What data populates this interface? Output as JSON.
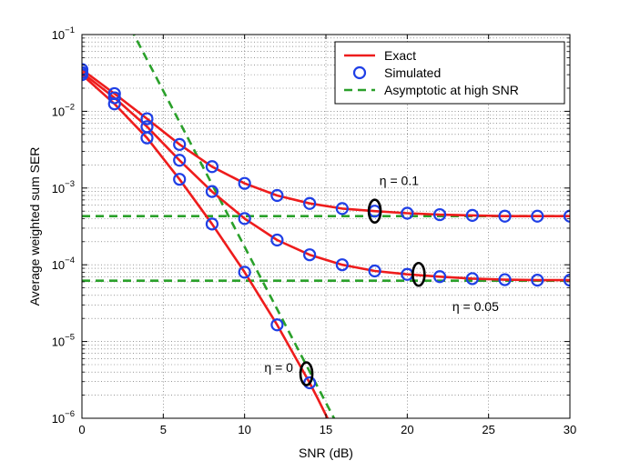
{
  "chart_data": {
    "type": "line",
    "title": "",
    "xlabel": "SNR (dB)",
    "ylabel": "Average weighted sum SER",
    "xlim": [
      0,
      30
    ],
    "ylim": [
      1e-06,
      0.1
    ],
    "yscale": "log",
    "grid": true,
    "x_ticks": [
      0,
      5,
      10,
      15,
      20,
      25,
      30
    ],
    "x_tick_labels": [
      "0",
      "5",
      "10",
      "15",
      "20",
      "25",
      "30"
    ],
    "y_ticks": [
      1e-06,
      1e-05,
      0.0001,
      0.001,
      0.01,
      0.1
    ],
    "y_tick_labels": [
      {
        "base": "10",
        "exp": "−6"
      },
      {
        "base": "10",
        "exp": "−5"
      },
      {
        "base": "10",
        "exp": "−4"
      },
      {
        "base": "10",
        "exp": "−3"
      },
      {
        "base": "10",
        "exp": "−2"
      },
      {
        "base": "10",
        "exp": "−1"
      }
    ],
    "legend": {
      "position": "top-right",
      "entries": [
        {
          "label": "Exact",
          "style": "line",
          "color": "#ee1c1c"
        },
        {
          "label": "Simulated",
          "style": "marker",
          "color": "#1f3fe6"
        },
        {
          "label": "Asymptotic at high SNR",
          "style": "dashed",
          "color": "#2aa02a"
        }
      ]
    },
    "series": [
      {
        "name": "Exact η = 0.1",
        "color": "#ee1c1c",
        "x": [
          0,
          2,
          4,
          6,
          8,
          10,
          12,
          14,
          16,
          18,
          20,
          22,
          24,
          26,
          28,
          30
        ],
        "y": [
          0.035,
          0.017,
          0.008,
          0.0037,
          0.0019,
          0.00115,
          0.0008,
          0.00063,
          0.00054,
          0.0005,
          0.00047,
          0.00045,
          0.00044,
          0.00043,
          0.00043,
          0.00043
        ]
      },
      {
        "name": "Exact η = 0.05",
        "color": "#ee1c1c",
        "x": [
          0,
          2,
          4,
          6,
          8,
          10,
          12,
          14,
          16,
          18,
          20,
          22,
          24,
          26,
          28,
          30
        ],
        "y": [
          0.032,
          0.015,
          0.0063,
          0.0023,
          0.0009,
          0.0004,
          0.00021,
          0.000135,
          0.0001,
          8.3e-05,
          7.5e-05,
          7e-05,
          6.6e-05,
          6.4e-05,
          6.3e-05,
          6.3e-05
        ]
      },
      {
        "name": "Exact η = 0",
        "color": "#ee1c1c",
        "x": [
          0,
          2,
          4,
          6,
          8,
          10,
          12,
          14,
          14.5,
          15,
          15.5
        ],
        "y": [
          0.03,
          0.0125,
          0.0045,
          0.0013,
          0.00034,
          8e-05,
          1.65e-05,
          2.9e-06,
          1.8e-06,
          1.1e-06,
          6.8e-07
        ]
      },
      {
        "name": "Simulated η = 0.1",
        "color": "#1f3fe6",
        "marker": "circle",
        "x": [
          0,
          2,
          4,
          6,
          8,
          10,
          12,
          14,
          16,
          18,
          20,
          22,
          24,
          26,
          28,
          30
        ],
        "y": [
          0.035,
          0.017,
          0.008,
          0.0037,
          0.0019,
          0.00115,
          0.0008,
          0.00063,
          0.00054,
          0.0005,
          0.00047,
          0.00045,
          0.00044,
          0.00043,
          0.00043,
          0.00043
        ]
      },
      {
        "name": "Simulated η = 0.05",
        "color": "#1f3fe6",
        "marker": "circle",
        "x": [
          0,
          2,
          4,
          6,
          8,
          10,
          12,
          14,
          16,
          18,
          20,
          22,
          24,
          26,
          28,
          30
        ],
        "y": [
          0.032,
          0.015,
          0.0063,
          0.0023,
          0.0009,
          0.0004,
          0.00021,
          0.000135,
          0.0001,
          8.3e-05,
          7.5e-05,
          7e-05,
          6.6e-05,
          6.4e-05,
          6.3e-05,
          6.3e-05
        ]
      },
      {
        "name": "Simulated η = 0",
        "color": "#1f3fe6",
        "marker": "circle",
        "x": [
          0,
          2,
          4,
          6,
          8,
          10,
          12,
          14
        ],
        "y": [
          0.03,
          0.0125,
          0.0045,
          0.0013,
          0.00034,
          8e-05,
          1.65e-05,
          2.9e-06
        ]
      },
      {
        "name": "Asymptotic η = 0.1",
        "color": "#2aa02a",
        "dashed": true,
        "x": [
          0,
          30
        ],
        "y": [
          0.00043,
          0.00043
        ]
      },
      {
        "name": "Asymptotic η = 0.05",
        "color": "#2aa02a",
        "dashed": true,
        "x": [
          0,
          30
        ],
        "y": [
          6.2e-05,
          6.2e-05
        ]
      },
      {
        "name": "Asymptotic η = 0",
        "color": "#2aa02a",
        "dashed": true,
        "x": [
          3.0,
          15.5
        ],
        "y": [
          0.12,
          1e-06
        ]
      }
    ],
    "annotations": [
      {
        "text": "η = 0.1",
        "x": 19.5,
        "y": 0.0011,
        "ellipse": {
          "x": 18.0,
          "y": 0.0005
        }
      },
      {
        "text": "η = 0.05",
        "x": 24.2,
        "y": 2.5e-05,
        "ellipse": {
          "x": 20.7,
          "y": 7.5e-05
        }
      },
      {
        "text": "η = 0",
        "x": 12.1,
        "y": 4e-06,
        "ellipse": {
          "x": 13.8,
          "y": 3.8e-06
        }
      }
    ]
  }
}
